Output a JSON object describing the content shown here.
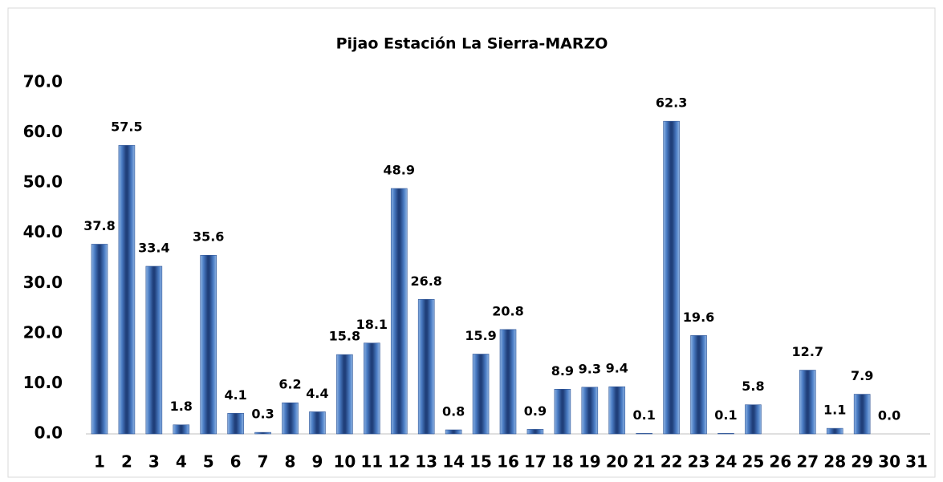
{
  "chart_data": {
    "type": "bar",
    "title": "Pijao Estación La Sierra-MARZO",
    "categories": [
      "1",
      "2",
      "3",
      "4",
      "5",
      "6",
      "7",
      "8",
      "9",
      "10",
      "11",
      "12",
      "13",
      "14",
      "15",
      "16",
      "17",
      "18",
      "19",
      "20",
      "21",
      "22",
      "23",
      "24",
      "25",
      "26",
      "27",
      "28",
      "29",
      "30",
      "31"
    ],
    "values": [
      37.8,
      57.5,
      33.4,
      1.8,
      35.6,
      4.1,
      0.3,
      6.2,
      4.4,
      15.8,
      18.1,
      48.9,
      26.8,
      0.8,
      15.9,
      20.8,
      0.9,
      8.9,
      9.3,
      9.4,
      0.1,
      62.3,
      19.6,
      0.1,
      5.8,
      null,
      12.7,
      1.1,
      7.9,
      0.0,
      null
    ],
    "value_labels": [
      "37.8",
      "57.5",
      "33.4",
      "1.8",
      "35.6",
      "4.1",
      "0.3",
      "6.2",
      "4.4",
      "15.8",
      "18.1",
      "48.9",
      "26.8",
      "0.8",
      "15.9",
      "20.8",
      "0.9",
      "8.9",
      "9.3",
      "9.4",
      "0.1",
      "62.3",
      "19.6",
      "0.1",
      "5.8",
      null,
      "12.7",
      "1.1",
      "7.9",
      "0.0",
      null
    ],
    "color": "#2f5597",
    "ylim": [
      0,
      70
    ],
    "yticks": [
      {
        "value": 0,
        "label": "0.0"
      },
      {
        "value": 10,
        "label": "10.0"
      },
      {
        "value": 20,
        "label": "20.0"
      },
      {
        "value": 30,
        "label": "30.0"
      },
      {
        "value": 40,
        "label": "40.0"
      },
      {
        "value": 50,
        "label": "50.0"
      },
      {
        "value": 60,
        "label": "60.0"
      },
      {
        "value": 70,
        "label": "70.0"
      }
    ],
    "grid": false
  }
}
